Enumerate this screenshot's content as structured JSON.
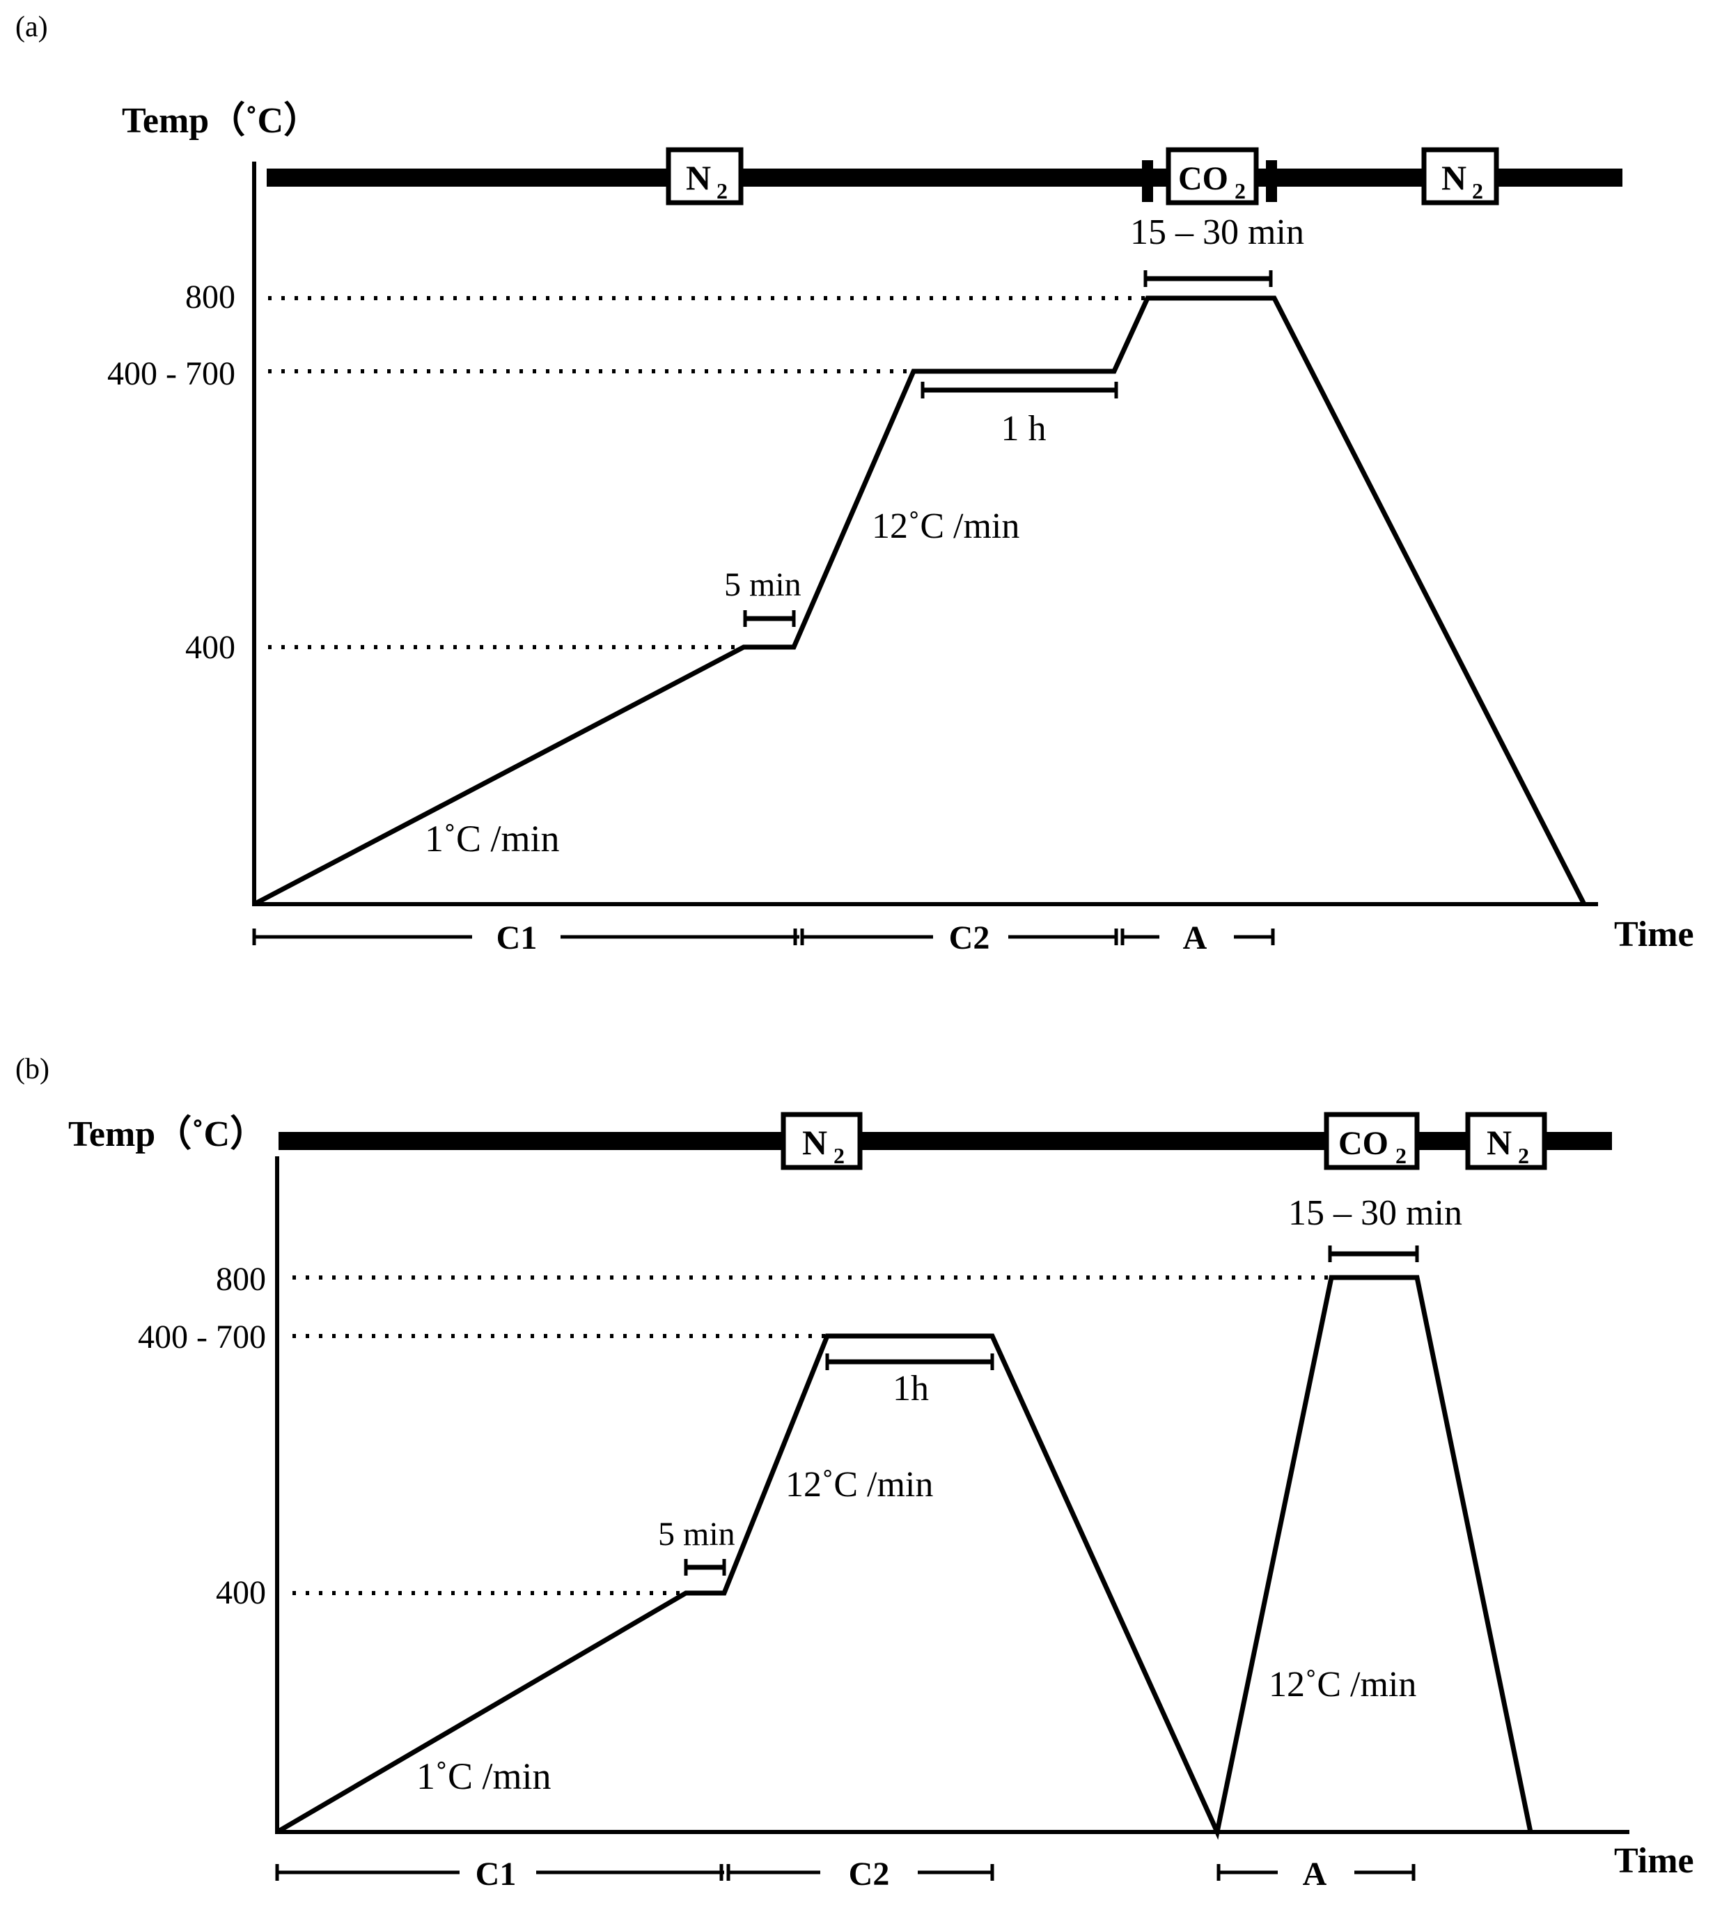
{
  "panels": [
    {
      "id": "a",
      "panel_label": "(a)",
      "y_axis_title": "Temp（˚C）",
      "x_axis_title": "Time",
      "y_ticks": [
        "800",
        "400 - 700",
        "400"
      ],
      "gas_labels": [
        "N",
        "CO",
        "N"
      ],
      "gas_subscript": "2",
      "annotations": {
        "rate_slow": "1˚C /min",
        "hold_5": "5 min",
        "rate_fast": "12˚C /min",
        "hold_1h": "1 h",
        "hold_co2": "15 – 30 min"
      },
      "stages": [
        "C1",
        "C2",
        "A"
      ]
    },
    {
      "id": "b",
      "panel_label": "(b)",
      "y_axis_title": "Temp（˚C）",
      "x_axis_title": "Time",
      "y_ticks": [
        "800",
        "400 - 700",
        "400"
      ],
      "gas_labels": [
        "N",
        "CO",
        "N"
      ],
      "gas_subscript": "2",
      "annotations": {
        "rate_slow": "1˚C /min",
        "hold_5": "5 min",
        "rate_fast": "12˚C /min",
        "hold_1h": "1h",
        "hold_co2": "15 – 30 min",
        "rate_fast_2": "12˚C /min"
      },
      "stages": [
        "C1",
        "C2",
        "A"
      ]
    }
  ]
}
